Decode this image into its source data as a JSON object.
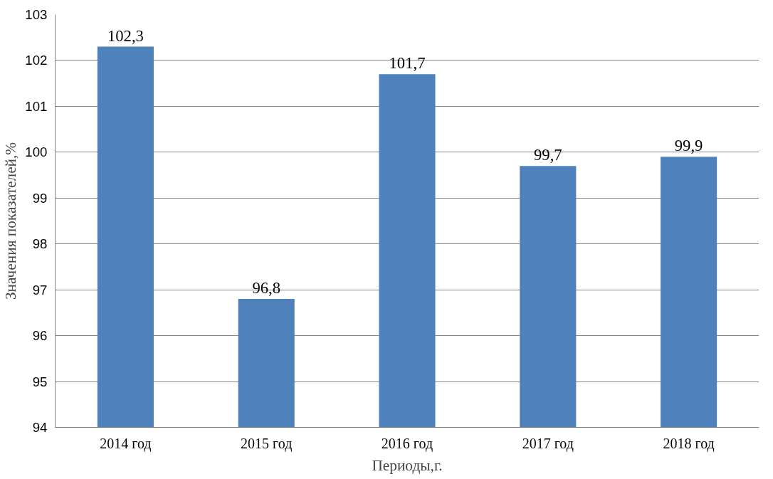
{
  "chart_data": {
    "type": "bar",
    "xlabel": "Периоды,г.",
    "ylabel": "Значения показателей,%",
    "categories": [
      "2014 год",
      "2015 год",
      "2016 год",
      "2017 год",
      "2018 год"
    ],
    "values": [
      102.3,
      96.8,
      101.7,
      99.7,
      99.9
    ],
    "value_labels": [
      "102,3",
      "96,8",
      "101,7",
      "99,7",
      "99,9"
    ],
    "color": "#4f81bd",
    "ylim": [
      94,
      103
    ],
    "yticks": [
      94,
      95,
      96,
      97,
      98,
      99,
      100,
      101,
      102,
      103
    ],
    "grid": "y"
  }
}
